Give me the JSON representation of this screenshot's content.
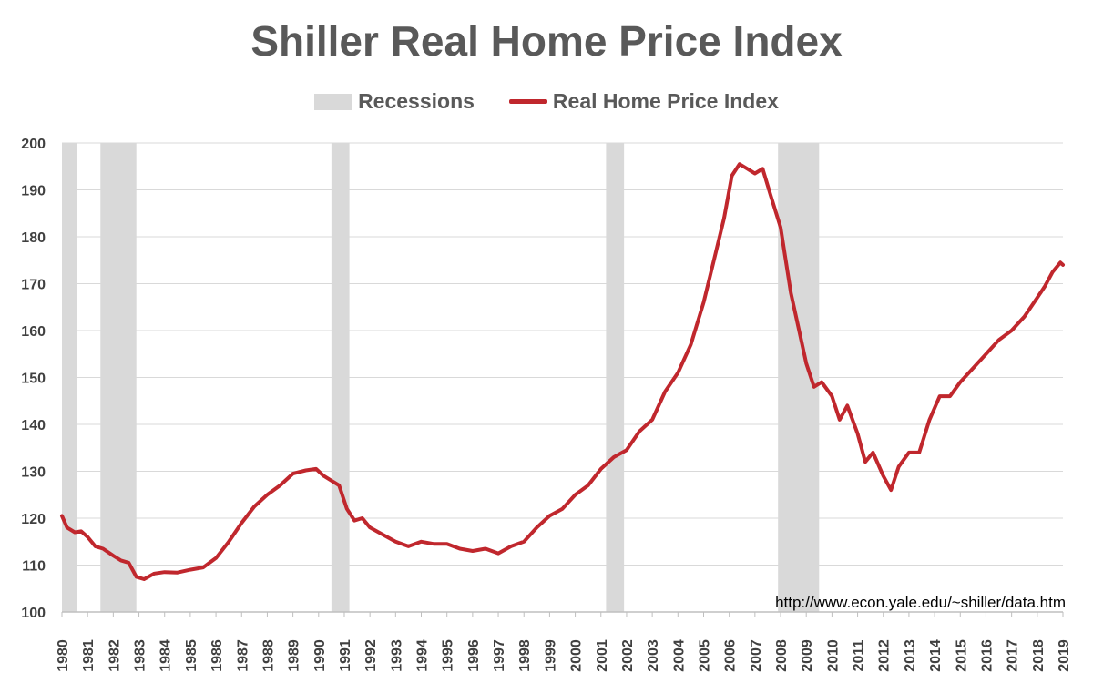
{
  "chart_data": {
    "type": "line",
    "title": "Shiller Real Home Price Index",
    "xlabel": "",
    "ylabel": "",
    "xlim": [
      1980,
      2019
    ],
    "ylim": [
      100,
      200
    ],
    "yticks": [
      100,
      110,
      120,
      130,
      140,
      150,
      160,
      170,
      180,
      190,
      200
    ],
    "xticks": [
      "1980",
      "1981",
      "1982",
      "1983",
      "1984",
      "1985",
      "1986",
      "1987",
      "1988",
      "1989",
      "1990",
      "1991",
      "1992",
      "1993",
      "1994",
      "1995",
      "1996",
      "1997",
      "1998",
      "1999",
      "2000",
      "2001",
      "2002",
      "2003",
      "2004",
      "2005",
      "2006",
      "2007",
      "2008",
      "2009",
      "2010",
      "2011",
      "2012",
      "2013",
      "2014",
      "2015",
      "2016",
      "2017",
      "2018",
      "2019"
    ],
    "grid": true,
    "legend_position": "top-center",
    "legend": [
      "Recessions",
      "Real Home Price Index"
    ],
    "recessions": [
      [
        1980.0,
        1980.6
      ],
      [
        1981.5,
        1982.9
      ],
      [
        1990.5,
        1991.2
      ],
      [
        2001.2,
        2001.9
      ],
      [
        2007.9,
        2009.5
      ]
    ],
    "series": [
      {
        "name": "Real Home Price Index",
        "color": "#c0272d",
        "x": [
          1980.0,
          1980.2,
          1980.5,
          1980.75,
          1981.0,
          1981.3,
          1981.6,
          1982.0,
          1982.3,
          1982.6,
          1982.9,
          1983.2,
          1983.6,
          1984.0,
          1984.5,
          1985.0,
          1985.5,
          1986.0,
          1986.5,
          1987.0,
          1987.5,
          1988.0,
          1988.5,
          1989.0,
          1989.5,
          1989.9,
          1990.2,
          1990.5,
          1990.8,
          1991.1,
          1991.4,
          1991.7,
          1992.0,
          1992.5,
          1993.0,
          1993.5,
          1994.0,
          1994.5,
          1995.0,
          1995.5,
          1996.0,
          1996.5,
          1997.0,
          1997.5,
          1998.0,
          1998.5,
          1999.0,
          1999.5,
          2000.0,
          2000.5,
          2001.0,
          2001.5,
          2002.0,
          2002.5,
          2003.0,
          2003.5,
          2004.0,
          2004.5,
          2005.0,
          2005.4,
          2005.8,
          2006.1,
          2006.4,
          2006.7,
          2007.0,
          2007.3,
          2007.6,
          2008.0,
          2008.4,
          2008.8,
          2009.0,
          2009.3,
          2009.6,
          2010.0,
          2010.3,
          2010.6,
          2011.0,
          2011.3,
          2011.6,
          2012.0,
          2012.3,
          2012.6,
          2013.0,
          2013.4,
          2013.8,
          2014.2,
          2014.6,
          2015.0,
          2015.5,
          2016.0,
          2016.5,
          2017.0,
          2017.5,
          2018.0,
          2018.3,
          2018.6,
          2018.9,
          2019.0
        ],
        "values": [
          120.5,
          118.0,
          117.0,
          117.2,
          116.0,
          114.0,
          113.5,
          112.0,
          111.0,
          110.5,
          107.5,
          107.0,
          108.2,
          108.5,
          108.4,
          109.0,
          109.5,
          111.5,
          115.0,
          119.0,
          122.5,
          125.0,
          127.0,
          129.5,
          130.2,
          130.5,
          129.0,
          128.0,
          127.0,
          122.0,
          119.5,
          120.0,
          118.0,
          116.5,
          115.0,
          114.0,
          115.0,
          114.5,
          114.5,
          113.5,
          113.0,
          113.5,
          112.5,
          114.0,
          115.0,
          118.0,
          120.5,
          122.0,
          125.0,
          127.0,
          130.5,
          133.0,
          134.5,
          138.5,
          141.0,
          147.0,
          151.0,
          157.0,
          166.0,
          175.0,
          184.0,
          193.0,
          195.5,
          194.5,
          193.5,
          194.5,
          189.0,
          182.0,
          168.0,
          158.0,
          153.0,
          148.0,
          149.0,
          146.0,
          141.0,
          144.0,
          138.0,
          132.0,
          134.0,
          129.0,
          126.0,
          131.0,
          134.0,
          134.0,
          141.0,
          146.0,
          146.0,
          149.0,
          152.0,
          155.0,
          158.0,
          160.0,
          163.0,
          167.0,
          169.5,
          172.5,
          174.5,
          174.0
        ]
      }
    ],
    "annotations": [
      "http://www.econ.yale.edu/~shiller/data.htm"
    ]
  },
  "colors": {
    "line": "#c0272d",
    "recession": "#d9d9d9",
    "grid": "#d9d9d9",
    "axis": "#bfbfbf"
  }
}
